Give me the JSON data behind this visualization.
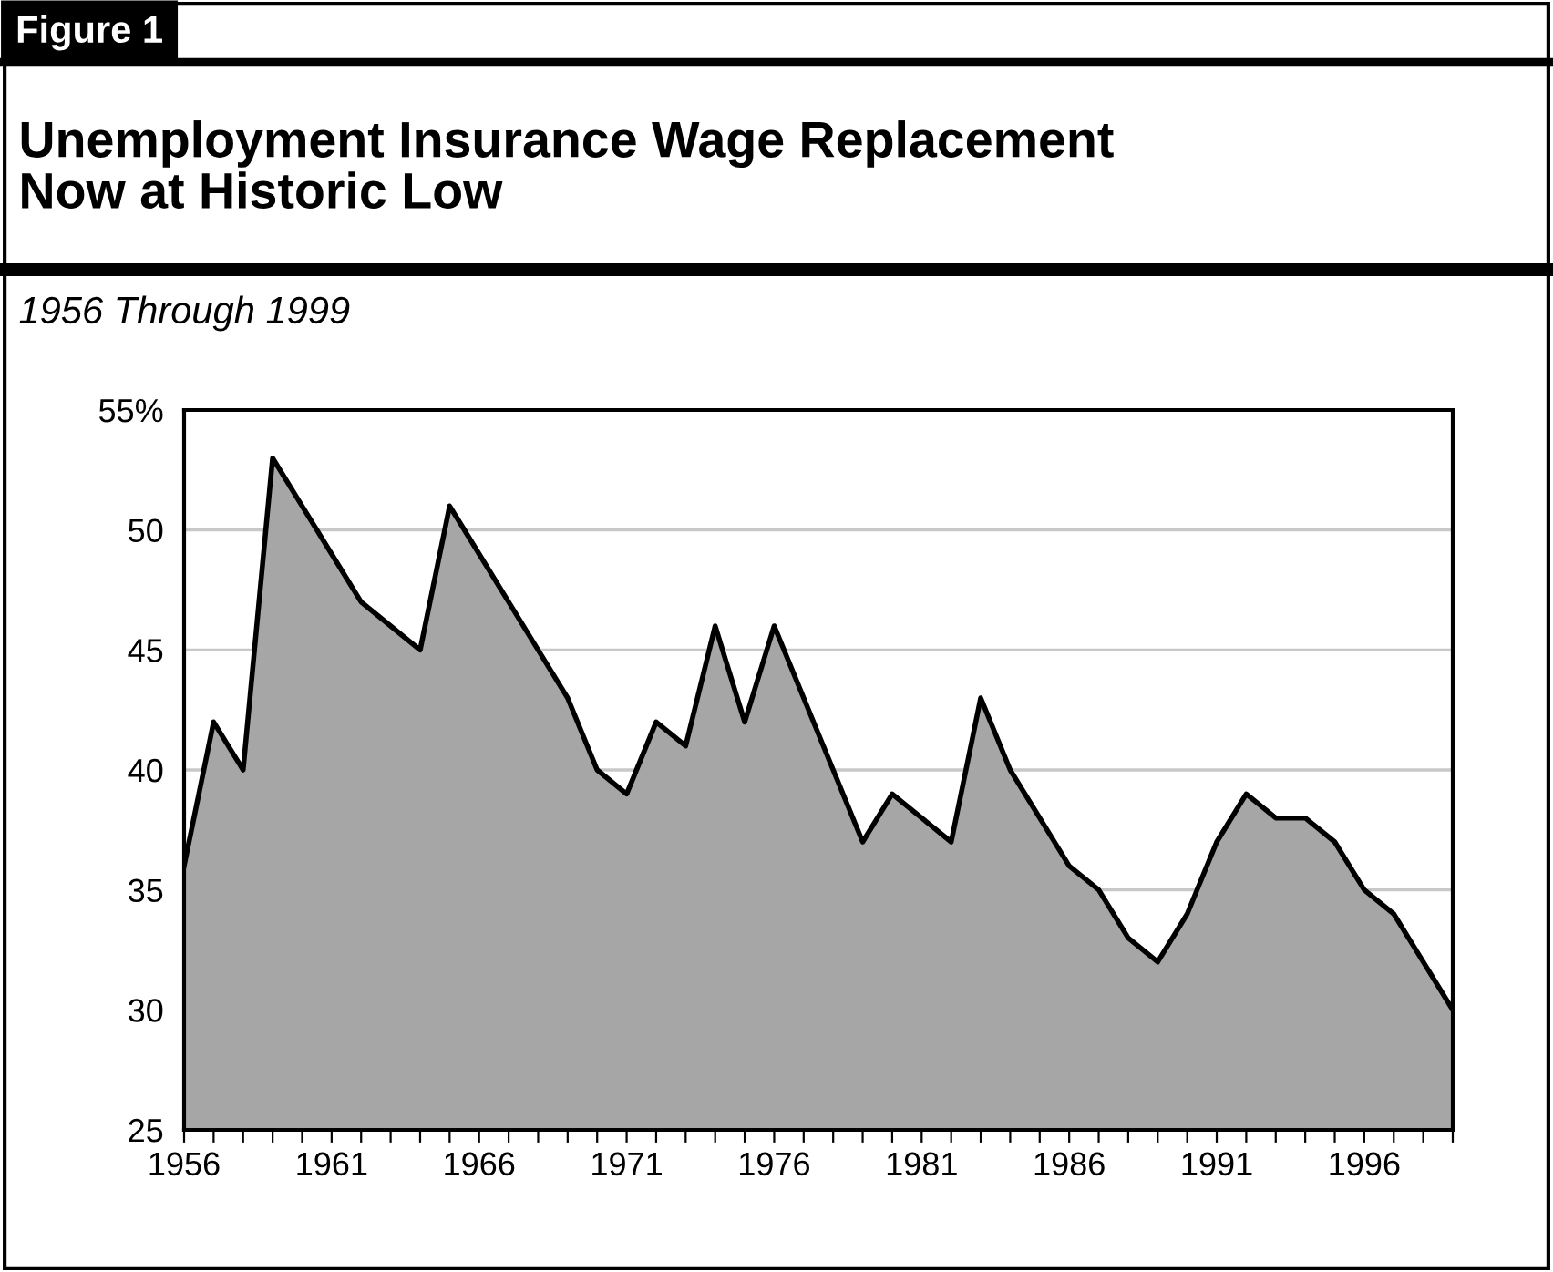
{
  "chart_data": {
    "type": "area",
    "title": "Unemployment Insurance Wage Replacement\nNow at Historic Low",
    "subtitle": "1956 Through 1999",
    "annotations": [
      "Figure 1"
    ],
    "categories": [
      "1956",
      null,
      null,
      null,
      null,
      "1961",
      null,
      null,
      null,
      null,
      "1966",
      null,
      null,
      null,
      null,
      "1971",
      null,
      null,
      null,
      null,
      "1976",
      null,
      null,
      null,
      null,
      "1981",
      null,
      null,
      null,
      null,
      "1986",
      null,
      null,
      null,
      null,
      "1991",
      null,
      null,
      null,
      null,
      "1996",
      null,
      null,
      null
    ],
    "series": [
      {
        "color": "#a6a6a6",
        "values": [
          36,
          42,
          40,
          53,
          51,
          49,
          47,
          46,
          45,
          51,
          49,
          47,
          45,
          43,
          40,
          39,
          42,
          41,
          46,
          42,
          46,
          43,
          40,
          37,
          39,
          38,
          37,
          43,
          40,
          38,
          36,
          35,
          33,
          32,
          34,
          37,
          39,
          38,
          38,
          37,
          35,
          34,
          32,
          30
        ]
      }
    ],
    "ylim": [
      25,
      55
    ],
    "yticks": [
      {
        "value": 55,
        "label": "55%"
      },
      50,
      45,
      40,
      35,
      30,
      25
    ],
    "grid": "y"
  }
}
